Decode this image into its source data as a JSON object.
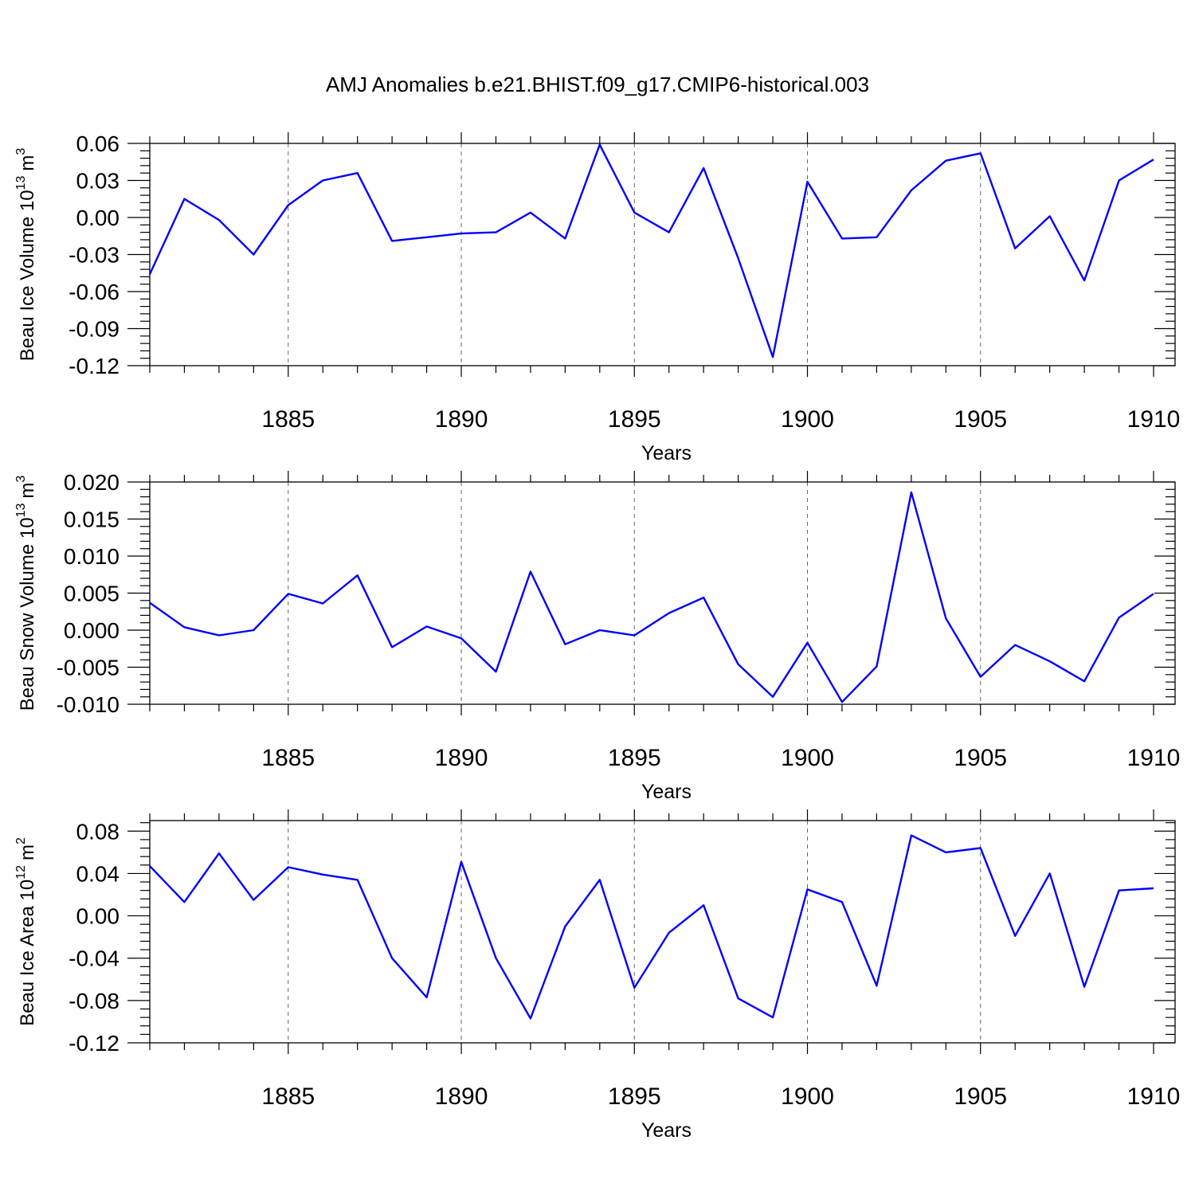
{
  "title": "AMJ Anomalies b.e21.BHIST.f09_g17.CMIP6-historical.003",
  "colors": {
    "line": "#0000ff",
    "axis": "#000000",
    "background": "#ffffff"
  },
  "chart_data": [
    {
      "type": "line",
      "title": "",
      "xlabel": "Years",
      "ylabel": "Beau Ice Volume 10",
      "ylabel_sup": "13",
      "ylabel_unit": "m",
      "ylabel_unit_sup": "3",
      "xlim": [
        1881,
        1910
      ],
      "ylim": [
        -0.12,
        0.06
      ],
      "yticks": [
        -0.12,
        -0.09,
        -0.06,
        -0.03,
        0.0,
        0.03,
        0.06
      ],
      "ytick_labels": [
        "-0.12",
        "-0.09",
        "-0.06",
        "-0.03",
        "0.00",
        "0.03",
        "0.06"
      ],
      "xticks": [
        1885,
        1890,
        1895,
        1900,
        1905,
        1910
      ],
      "xtick_labels": [
        "1885",
        "1890",
        "1895",
        "1900",
        "1905",
        "1910"
      ],
      "grid": "vertical dashed at major x ticks",
      "x": [
        1881,
        1882,
        1883,
        1884,
        1885,
        1886,
        1887,
        1888,
        1889,
        1890,
        1891,
        1892,
        1893,
        1894,
        1895,
        1896,
        1897,
        1898,
        1899,
        1900,
        1901,
        1902,
        1903,
        1904,
        1905,
        1906,
        1907,
        1908,
        1909,
        1910
      ],
      "series": [
        {
          "values": [
            -0.046,
            0.015,
            -0.002,
            -0.03,
            0.01,
            0.03,
            0.036,
            -0.019,
            -0.016,
            -0.013,
            -0.012,
            0.004,
            -0.017,
            0.059,
            0.004,
            -0.012,
            0.04,
            -0.033,
            -0.113,
            0.029,
            -0.017,
            -0.016,
            0.022,
            0.046,
            0.052,
            -0.025,
            0.001,
            -0.051,
            0.03,
            0.047
          ]
        }
      ]
    },
    {
      "type": "line",
      "title": "",
      "xlabel": "Years",
      "ylabel": "Beau Snow Volume 10",
      "ylabel_sup": "13",
      "ylabel_unit": "m",
      "ylabel_unit_sup": "3",
      "xlim": [
        1881,
        1910
      ],
      "ylim": [
        -0.01,
        0.02
      ],
      "yticks": [
        -0.01,
        -0.005,
        0.0,
        0.005,
        0.01,
        0.015,
        0.02
      ],
      "ytick_labels": [
        "-0.010",
        "-0.005",
        "0.000",
        "0.005",
        "0.010",
        "0.015",
        "0.020"
      ],
      "xticks": [
        1885,
        1890,
        1895,
        1900,
        1905,
        1910
      ],
      "xtick_labels": [
        "1885",
        "1890",
        "1895",
        "1900",
        "1905",
        "1910"
      ],
      "grid": "vertical dashed at major x ticks",
      "x": [
        1881,
        1882,
        1883,
        1884,
        1885,
        1886,
        1887,
        1888,
        1889,
        1890,
        1891,
        1892,
        1893,
        1894,
        1895,
        1896,
        1897,
        1898,
        1899,
        1900,
        1901,
        1902,
        1903,
        1904,
        1905,
        1906,
        1907,
        1908,
        1909,
        1910
      ],
      "series": [
        {
          "values": [
            0.0037,
            0.0004,
            -0.0007,
            0.0,
            0.0049,
            0.0036,
            0.0074,
            -0.0023,
            0.0005,
            -0.0011,
            -0.0056,
            0.0079,
            -0.0019,
            0.0,
            -0.0007,
            0.0023,
            0.0044,
            -0.0046,
            -0.009,
            -0.0017,
            -0.0097,
            -0.0049,
            0.0186,
            0.0016,
            -0.0063,
            -0.002,
            -0.0042,
            -0.0069,
            0.0017,
            0.0049
          ]
        }
      ]
    },
    {
      "type": "line",
      "title": "",
      "xlabel": "Years",
      "ylabel": "Beau Ice Area 10",
      "ylabel_sup": "12",
      "ylabel_unit": "m",
      "ylabel_unit_sup": "2",
      "xlim": [
        1881,
        1910
      ],
      "ylim": [
        -0.12,
        0.09
      ],
      "yticks": [
        -0.12,
        -0.08,
        -0.04,
        0.0,
        0.04,
        0.08
      ],
      "ytick_labels": [
        "-0.12",
        "-0.08",
        "-0.04",
        "0.00",
        "0.04",
        "0.08"
      ],
      "xticks": [
        1885,
        1890,
        1895,
        1900,
        1905,
        1910
      ],
      "xtick_labels": [
        "1885",
        "1890",
        "1895",
        "1900",
        "1905",
        "1910"
      ],
      "grid": "vertical dashed at major x ticks",
      "x": [
        1881,
        1882,
        1883,
        1884,
        1885,
        1886,
        1887,
        1888,
        1889,
        1890,
        1891,
        1892,
        1893,
        1894,
        1895,
        1896,
        1897,
        1898,
        1899,
        1900,
        1901,
        1902,
        1903,
        1904,
        1905,
        1906,
        1907,
        1908,
        1909,
        1910
      ],
      "series": [
        {
          "values": [
            0.047,
            0.013,
            0.059,
            0.015,
            0.046,
            0.039,
            0.034,
            -0.04,
            -0.077,
            0.051,
            -0.04,
            -0.097,
            -0.01,
            0.034,
            -0.068,
            -0.016,
            0.01,
            -0.078,
            -0.096,
            0.025,
            0.013,
            -0.066,
            0.076,
            0.06,
            0.064,
            -0.019,
            0.04,
            -0.067,
            0.024,
            0.026
          ]
        }
      ]
    }
  ]
}
